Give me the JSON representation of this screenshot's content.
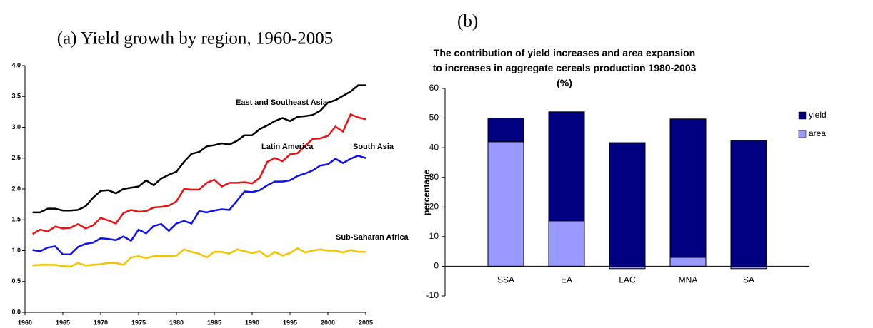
{
  "chart_data": [
    {
      "type": "line",
      "title": "(a) Yield growth by region, 1960-2005",
      "x": [
        1961,
        1962,
        1963,
        1964,
        1965,
        1966,
        1967,
        1968,
        1969,
        1970,
        1971,
        1972,
        1973,
        1974,
        1975,
        1976,
        1977,
        1978,
        1979,
        1980,
        1981,
        1982,
        1983,
        1984,
        1985,
        1986,
        1987,
        1988,
        1989,
        1990,
        1991,
        1992,
        1993,
        1994,
        1995,
        1996,
        1997,
        1998,
        1999,
        2000,
        2001,
        2002,
        2003,
        2004,
        2005
      ],
      "xlim": [
        1960,
        2005
      ],
      "xticks": [
        1960,
        1965,
        1970,
        1975,
        1980,
        1985,
        1990,
        1995,
        2000,
        2005
      ],
      "ylim": [
        0,
        4
      ],
      "yticks": [
        {
          "value": 0,
          "label": "0.0"
        },
        {
          "value": 0.5,
          "label": "0.5"
        },
        {
          "value": 1,
          "label": "1.0"
        },
        {
          "value": 1.5,
          "label": "1.5"
        },
        {
          "value": 2,
          "label": "2.0"
        },
        {
          "value": 2.5,
          "label": "2.5"
        },
        {
          "value": 3,
          "label": "3.0"
        },
        {
          "value": 3.5,
          "label": "3.5"
        },
        {
          "value": 4,
          "label": "4.0"
        }
      ],
      "series": [
        {
          "name": "East and Southeast Asia",
          "color": "#000000",
          "values": [
            1.62,
            1.62,
            1.68,
            1.68,
            1.65,
            1.65,
            1.66,
            1.72,
            1.86,
            1.97,
            1.98,
            1.93,
            2.0,
            2.02,
            2.04,
            2.14,
            2.06,
            2.17,
            2.23,
            2.28,
            2.44,
            2.57,
            2.6,
            2.69,
            2.71,
            2.74,
            2.72,
            2.78,
            2.87,
            2.87,
            2.97,
            3.03,
            3.1,
            3.15,
            3.1,
            3.17,
            3.18,
            3.2,
            3.27,
            3.4,
            3.44,
            3.51,
            3.58,
            3.68,
            3.68
          ]
        },
        {
          "name": "Latin America",
          "color": "#ee1111",
          "values": [
            1.27,
            1.34,
            1.31,
            1.39,
            1.36,
            1.37,
            1.43,
            1.36,
            1.41,
            1.53,
            1.49,
            1.44,
            1.61,
            1.66,
            1.63,
            1.64,
            1.7,
            1.71,
            1.73,
            1.8,
            2.0,
            1.99,
            1.99,
            2.1,
            2.15,
            2.04,
            2.1,
            2.1,
            2.11,
            2.09,
            2.18,
            2.44,
            2.5,
            2.45,
            2.56,
            2.58,
            2.7,
            2.81,
            2.82,
            2.86,
            3.01,
            2.93,
            3.21,
            3.16,
            3.13
          ]
        },
        {
          "name": "South Asia",
          "color": "#1111ee",
          "values": [
            1.01,
            0.99,
            1.05,
            1.07,
            0.94,
            0.94,
            1.06,
            1.11,
            1.13,
            1.2,
            1.19,
            1.17,
            1.23,
            1.16,
            1.34,
            1.28,
            1.4,
            1.43,
            1.32,
            1.44,
            1.48,
            1.44,
            1.64,
            1.62,
            1.65,
            1.67,
            1.66,
            1.81,
            1.96,
            1.95,
            1.98,
            2.06,
            2.12,
            2.12,
            2.14,
            2.21,
            2.25,
            2.3,
            2.38,
            2.4,
            2.49,
            2.42,
            2.49,
            2.54,
            2.5
          ]
        },
        {
          "name": "Sub-Saharan Africa",
          "color": "#f5c400",
          "values": [
            0.76,
            0.77,
            0.77,
            0.77,
            0.75,
            0.74,
            0.8,
            0.76,
            0.77,
            0.78,
            0.8,
            0.8,
            0.77,
            0.89,
            0.91,
            0.88,
            0.91,
            0.91,
            0.91,
            0.92,
            1.02,
            0.98,
            0.95,
            0.89,
            0.98,
            0.98,
            0.95,
            1.02,
            0.99,
            0.96,
            0.99,
            0.9,
            0.98,
            0.92,
            0.96,
            1.04,
            0.97,
            1.0,
            1.02,
            1.0,
            1.0,
            0.97,
            1.01,
            0.98,
            0.98
          ]
        }
      ]
    },
    {
      "type": "stacked-bar",
      "panel_label": "(b)",
      "title": "The contribution of yield increases and area expansion to increases in aggregate cereals production 1980-2003 (%)",
      "y_label": "percentage",
      "categories": [
        "SSA",
        "EA",
        "LAC",
        "MNA",
        "SA"
      ],
      "ylim": [
        -10,
        60
      ],
      "yticks": [
        -10,
        0,
        10,
        20,
        30,
        40,
        50,
        60
      ],
      "legend": "right",
      "series": [
        {
          "name": "area",
          "color": "#9999ff",
          "values": [
            42,
            15.3,
            -0.8,
            3,
            -0.8
          ]
        },
        {
          "name": "yield",
          "color": "#000080",
          "values": [
            8,
            36.8,
            41.7,
            46.7,
            42.3
          ]
        }
      ]
    }
  ]
}
